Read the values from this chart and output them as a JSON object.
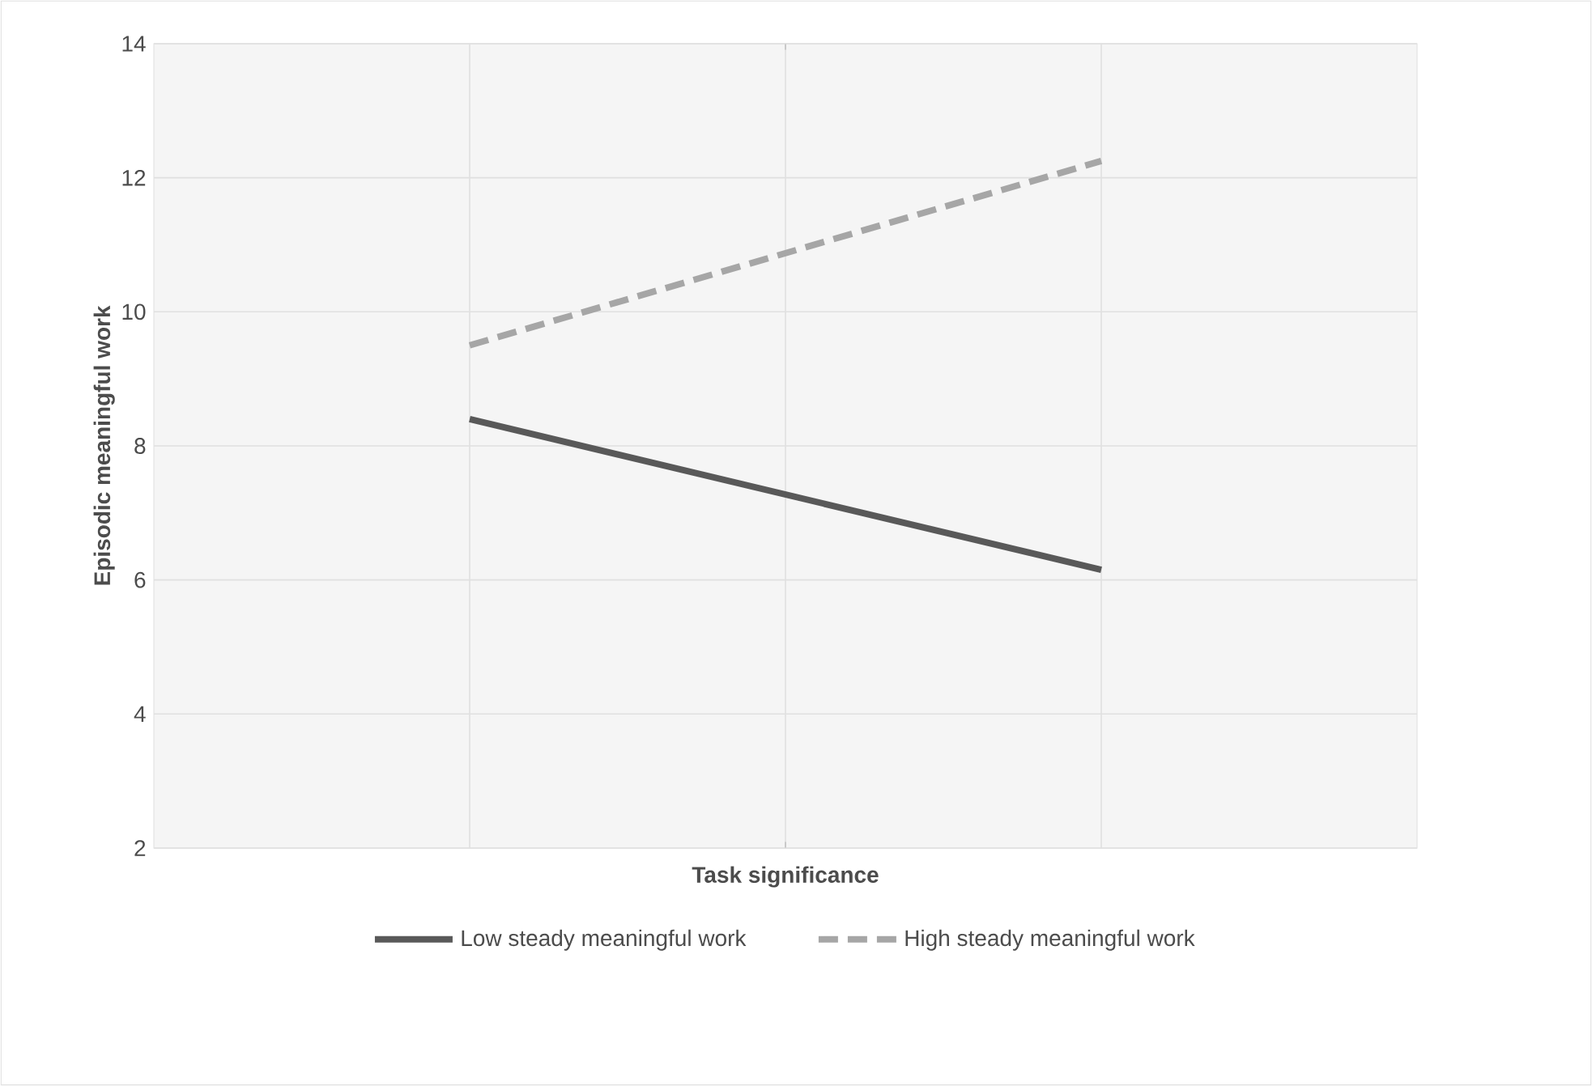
{
  "chart_data": {
    "type": "line",
    "xlabel": "Task significance",
    "ylabel": "Episodic meaningful work",
    "categories": [
      null,
      null
    ],
    "ylim": [
      2,
      14
    ],
    "yticks": [
      2,
      4,
      6,
      8,
      10,
      12,
      14
    ],
    "grid": true,
    "tick_labels": "y",
    "legend": "bottom",
    "marker": "none",
    "series": [
      {
        "name": "Low steady meaningful work",
        "color": "#595959",
        "line_style": "solid",
        "values": [
          8.4,
          6.15
        ]
      },
      {
        "name": "High steady meaningful work",
        "color": "#a6a6a6",
        "line_style": "dashed",
        "values": [
          9.5,
          12.25
        ]
      }
    ]
  }
}
